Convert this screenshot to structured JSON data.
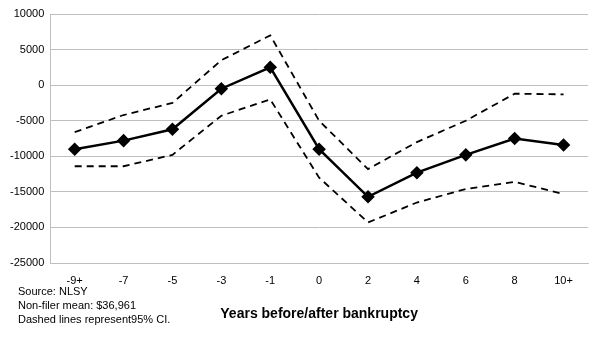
{
  "chart_data": {
    "type": "line",
    "x_label": "Years before/after bankruptcy",
    "annotations": [
      "Source: NLSY",
      "Non-filer mean: $36,961",
      "Dashed lines represent95% CI."
    ],
    "categories": [
      "-9+",
      "-7",
      "-5",
      "-3",
      "-1",
      "0",
      "2",
      "4",
      "6",
      "8",
      "10+"
    ],
    "series": [
      {
        "color": "#000000",
        "marker": "diamond",
        "line_style": "solid",
        "values": [
          -9000,
          -7800,
          -6200,
          -500,
          2500,
          -9000,
          -15700,
          -12300,
          -9800,
          -7500,
          -8400
        ]
      },
      {
        "color": "#000000",
        "marker": "none",
        "line_style": "dashed",
        "values": [
          -6600,
          -4200,
          -2500,
          3500,
          7000,
          -5000,
          -11800,
          -8000,
          -5000,
          -1200,
          -1300
        ]
      },
      {
        "color": "#000000",
        "marker": "none",
        "line_style": "dashed",
        "values": [
          -11400,
          -11400,
          -9800,
          -4300,
          -2000,
          -13000,
          -19300,
          -16500,
          -14600,
          -13600,
          -15300
        ]
      }
    ],
    "ylim": [
      -25000,
      10000
    ],
    "yticks": [
      -25000,
      -20000,
      -15000,
      -10000,
      -5000,
      0,
      5000,
      10000
    ],
    "grid": true
  }
}
